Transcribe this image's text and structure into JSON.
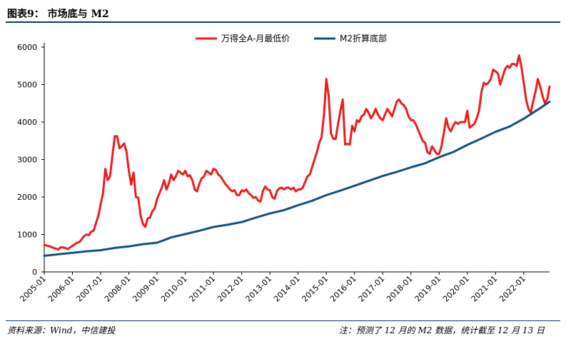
{
  "header": {
    "title": "图表9： 市场底与 M2"
  },
  "footer": {
    "source": "资料来源：Wind，中信建投",
    "note": "注：预测了 12 月的 M2 数据，统计截至 12 月 13 日"
  },
  "colors": {
    "accent": "#0d3a68",
    "series_red": "#ee1c1c",
    "series_blue": "#14527e"
  },
  "chart_data": {
    "type": "line",
    "xlabel": "",
    "ylabel": "",
    "ylim": [
      0,
      6000
    ],
    "yticks": [
      0,
      1000,
      2000,
      3000,
      4000,
      5000,
      6000
    ],
    "xticks": [
      "2005-01",
      "2006-01",
      "2007-01",
      "2008-01",
      "2009-01",
      "2010-01",
      "2011-01",
      "2012-01",
      "2013-01",
      "2014-01",
      "2015-01",
      "2016-01",
      "2017-01",
      "2018-01",
      "2019-01",
      "2020-01",
      "2021-01",
      "2022-01"
    ],
    "x_start": "2005-01",
    "x_end": "2022-12",
    "legend_position": "top-center",
    "series": [
      {
        "name": "万得全A-月最低价",
        "color": "#ee1c1c",
        "points": [
          [
            "2005-01",
            720
          ],
          [
            "2005-03",
            690
          ],
          [
            "2005-05",
            640
          ],
          [
            "2005-07",
            600
          ],
          [
            "2005-08",
            660
          ],
          [
            "2005-10",
            640
          ],
          [
            "2005-11",
            610
          ],
          [
            "2006-01",
            700
          ],
          [
            "2006-03",
            780
          ],
          [
            "2006-04",
            800
          ],
          [
            "2006-06",
            960
          ],
          [
            "2006-07",
            1000
          ],
          [
            "2006-08",
            980
          ],
          [
            "2006-09",
            1080
          ],
          [
            "2006-10",
            1100
          ],
          [
            "2006-11",
            1300
          ],
          [
            "2006-12",
            1500
          ],
          [
            "2007-01",
            1800
          ],
          [
            "2007-02",
            2100
          ],
          [
            "2007-03",
            2750
          ],
          [
            "2007-04",
            2450
          ],
          [
            "2007-05",
            2550
          ],
          [
            "2007-06",
            3100
          ],
          [
            "2007-07",
            3620
          ],
          [
            "2007-08",
            3620
          ],
          [
            "2007-09",
            3300
          ],
          [
            "2007-10",
            3350
          ],
          [
            "2007-11",
            3430
          ],
          [
            "2007-12",
            3200
          ],
          [
            "2008-01",
            2700
          ],
          [
            "2008-02",
            2330
          ],
          [
            "2008-03",
            2650
          ],
          [
            "2008-04",
            2000
          ],
          [
            "2008-05",
            1980
          ],
          [
            "2008-06",
            1500
          ],
          [
            "2008-07",
            1280
          ],
          [
            "2008-08",
            1200
          ],
          [
            "2008-09",
            1430
          ],
          [
            "2008-10",
            1450
          ],
          [
            "2008-11",
            1620
          ],
          [
            "2008-12",
            1700
          ],
          [
            "2009-01",
            1950
          ],
          [
            "2009-02",
            2100
          ],
          [
            "2009-03",
            2250
          ],
          [
            "2009-04",
            2450
          ],
          [
            "2009-05",
            2200
          ],
          [
            "2009-06",
            2350
          ],
          [
            "2009-07",
            2600
          ],
          [
            "2009-08",
            2450
          ],
          [
            "2009-09",
            2550
          ],
          [
            "2009-10",
            2700
          ],
          [
            "2009-11",
            2650
          ],
          [
            "2009-12",
            2600
          ],
          [
            "2010-01",
            2700
          ],
          [
            "2010-02",
            2550
          ],
          [
            "2010-03",
            2580
          ],
          [
            "2010-04",
            2450
          ],
          [
            "2010-05",
            2200
          ],
          [
            "2010-06",
            2150
          ],
          [
            "2010-07",
            2350
          ],
          [
            "2010-08",
            2500
          ],
          [
            "2010-09",
            2550
          ],
          [
            "2010-10",
            2700
          ],
          [
            "2010-11",
            2650
          ],
          [
            "2010-12",
            2600
          ],
          [
            "2011-01",
            2750
          ],
          [
            "2011-02",
            2720
          ],
          [
            "2011-03",
            2600
          ],
          [
            "2011-04",
            2550
          ],
          [
            "2011-05",
            2450
          ],
          [
            "2011-06",
            2350
          ],
          [
            "2011-07",
            2280
          ],
          [
            "2011-08",
            2200
          ],
          [
            "2011-09",
            2150
          ],
          [
            "2011-10",
            2180
          ],
          [
            "2011-11",
            2050
          ],
          [
            "2011-12",
            2050
          ],
          [
            "2012-01",
            2180
          ],
          [
            "2012-02",
            2150
          ],
          [
            "2012-03",
            2200
          ],
          [
            "2012-04",
            2100
          ],
          [
            "2012-05",
            2050
          ],
          [
            "2012-06",
            1980
          ],
          [
            "2012-07",
            2000
          ],
          [
            "2012-08",
            1900
          ],
          [
            "2012-09",
            1880
          ],
          [
            "2012-10",
            2150
          ],
          [
            "2012-11",
            2280
          ],
          [
            "2012-12",
            2200
          ],
          [
            "2013-01",
            2180
          ],
          [
            "2013-02",
            2000
          ],
          [
            "2013-03",
            1950
          ],
          [
            "2013-04",
            2150
          ],
          [
            "2013-05",
            2230
          ],
          [
            "2013-06",
            2250
          ],
          [
            "2013-07",
            2200
          ],
          [
            "2013-08",
            2250
          ],
          [
            "2013-09",
            2250
          ],
          [
            "2013-10",
            2200
          ],
          [
            "2013-11",
            2250
          ],
          [
            "2013-12",
            2150
          ],
          [
            "2014-01",
            2200
          ],
          [
            "2014-02",
            2200
          ],
          [
            "2014-03",
            2250
          ],
          [
            "2014-04",
            2400
          ],
          [
            "2014-05",
            2550
          ],
          [
            "2014-06",
            2600
          ],
          [
            "2014-07",
            2800
          ],
          [
            "2014-08",
            3000
          ],
          [
            "2014-09",
            3200
          ],
          [
            "2014-10",
            3450
          ],
          [
            "2014-11",
            3600
          ],
          [
            "2014-12",
            4200
          ],
          [
            "2015-01",
            5150
          ],
          [
            "2015-02",
            4700
          ],
          [
            "2015-03",
            3700
          ],
          [
            "2015-04",
            3550
          ],
          [
            "2015-05",
            3550
          ],
          [
            "2015-06",
            3950
          ],
          [
            "2015-07",
            4300
          ],
          [
            "2015-08",
            4600
          ],
          [
            "2015-09",
            3400
          ],
          [
            "2015-10",
            3420
          ],
          [
            "2015-11",
            3400
          ],
          [
            "2015-12",
            3900
          ],
          [
            "2016-01",
            3750
          ],
          [
            "2016-02",
            4050
          ],
          [
            "2016-03",
            4000
          ],
          [
            "2016-04",
            4150
          ],
          [
            "2016-05",
            4200
          ],
          [
            "2016-06",
            4350
          ],
          [
            "2016-07",
            4250
          ],
          [
            "2016-08",
            4100
          ],
          [
            "2016-09",
            4200
          ],
          [
            "2016-10",
            4350
          ],
          [
            "2016-11",
            4200
          ],
          [
            "2016-12",
            4100
          ],
          [
            "2017-01",
            4050
          ],
          [
            "2017-02",
            4200
          ],
          [
            "2017-03",
            4350
          ],
          [
            "2017-04",
            4250
          ],
          [
            "2017-05",
            4150
          ],
          [
            "2017-06",
            4350
          ],
          [
            "2017-07",
            4550
          ],
          [
            "2017-08",
            4600
          ],
          [
            "2017-09",
            4500
          ],
          [
            "2017-10",
            4450
          ],
          [
            "2017-11",
            4350
          ],
          [
            "2017-12",
            4150
          ],
          [
            "2018-01",
            4050
          ],
          [
            "2018-02",
            4050
          ],
          [
            "2018-03",
            3950
          ],
          [
            "2018-04",
            3800
          ],
          [
            "2018-05",
            3650
          ],
          [
            "2018-06",
            3500
          ],
          [
            "2018-07",
            3450
          ],
          [
            "2018-08",
            3200
          ],
          [
            "2018-09",
            3150
          ],
          [
            "2018-10",
            3350
          ],
          [
            "2018-11",
            3250
          ],
          [
            "2018-12",
            3150
          ],
          [
            "2019-01",
            3150
          ],
          [
            "2019-02",
            3350
          ],
          [
            "2019-03",
            3700
          ],
          [
            "2019-04",
            4100
          ],
          [
            "2019-05",
            3850
          ],
          [
            "2019-06",
            3750
          ],
          [
            "2019-07",
            3900
          ],
          [
            "2019-08",
            4000
          ],
          [
            "2019-09",
            3950
          ],
          [
            "2019-10",
            4000
          ],
          [
            "2019-11",
            4000
          ],
          [
            "2019-12",
            4000
          ],
          [
            "2020-01",
            4300
          ],
          [
            "2020-02",
            3850
          ],
          [
            "2020-03",
            3900
          ],
          [
            "2020-04",
            3950
          ],
          [
            "2020-05",
            4100
          ],
          [
            "2020-06",
            4300
          ],
          [
            "2020-07",
            4800
          ],
          [
            "2020-08",
            5050
          ],
          [
            "2020-09",
            5000
          ],
          [
            "2020-10",
            5050
          ],
          [
            "2020-11",
            5150
          ],
          [
            "2020-12",
            5400
          ],
          [
            "2021-01",
            5350
          ],
          [
            "2021-02",
            5300
          ],
          [
            "2021-03",
            5000
          ],
          [
            "2021-04",
            5200
          ],
          [
            "2021-05",
            5400
          ],
          [
            "2021-06",
            5500
          ],
          [
            "2021-07",
            5450
          ],
          [
            "2021-08",
            5550
          ],
          [
            "2021-09",
            5550
          ],
          [
            "2021-10",
            5500
          ],
          [
            "2021-11",
            5780
          ],
          [
            "2021-12",
            5480
          ],
          [
            "2022-01",
            5050
          ],
          [
            "2022-02",
            4600
          ],
          [
            "2022-03",
            4350
          ],
          [
            "2022-04",
            4250
          ],
          [
            "2022-05",
            4550
          ],
          [
            "2022-06",
            4800
          ],
          [
            "2022-07",
            5150
          ],
          [
            "2022-08",
            4950
          ],
          [
            "2022-09",
            4700
          ],
          [
            "2022-10",
            4500
          ],
          [
            "2022-11",
            4600
          ],
          [
            "2022-12",
            4950
          ]
        ]
      },
      {
        "name": "M2折算底部",
        "color": "#14527e",
        "points": [
          [
            "2005-01",
            430
          ],
          [
            "2005-07",
            470
          ],
          [
            "2006-01",
            510
          ],
          [
            "2006-07",
            550
          ],
          [
            "2007-01",
            580
          ],
          [
            "2007-07",
            640
          ],
          [
            "2008-01",
            680
          ],
          [
            "2008-07",
            740
          ],
          [
            "2009-01",
            780
          ],
          [
            "2009-07",
            920
          ],
          [
            "2010-01",
            1010
          ],
          [
            "2010-07",
            1100
          ],
          [
            "2011-01",
            1200
          ],
          [
            "2011-07",
            1260
          ],
          [
            "2012-01",
            1330
          ],
          [
            "2012-07",
            1450
          ],
          [
            "2013-01",
            1560
          ],
          [
            "2013-07",
            1650
          ],
          [
            "2014-01",
            1780
          ],
          [
            "2014-07",
            1900
          ],
          [
            "2015-01",
            2050
          ],
          [
            "2015-07",
            2170
          ],
          [
            "2016-01",
            2300
          ],
          [
            "2016-07",
            2430
          ],
          [
            "2017-01",
            2560
          ],
          [
            "2017-07",
            2670
          ],
          [
            "2018-01",
            2790
          ],
          [
            "2018-07",
            2900
          ],
          [
            "2019-01",
            3060
          ],
          [
            "2019-07",
            3200
          ],
          [
            "2020-01",
            3390
          ],
          [
            "2020-07",
            3560
          ],
          [
            "2021-01",
            3740
          ],
          [
            "2021-07",
            3880
          ],
          [
            "2022-01",
            4090
          ],
          [
            "2022-07",
            4330
          ],
          [
            "2022-12",
            4540
          ]
        ]
      }
    ]
  }
}
